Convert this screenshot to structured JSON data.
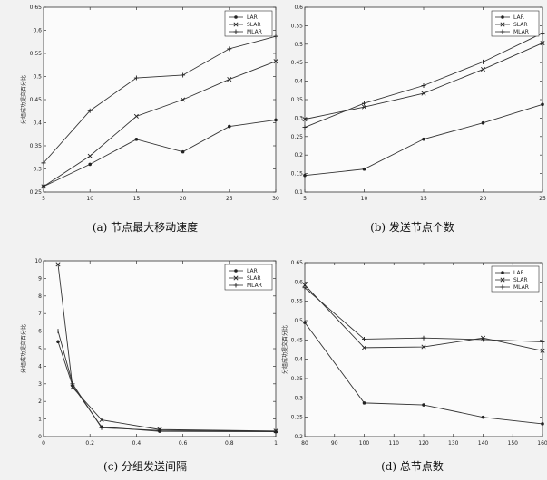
{
  "chart_data": [
    {
      "type": "line",
      "caption": "(a) 节点最大移动速度",
      "ylabel": "分组成功提交百分比",
      "x": [
        5,
        10,
        15,
        20,
        25,
        30
      ],
      "xticks": [
        "5",
        "10",
        "15",
        "20",
        "25",
        "30"
      ],
      "xlim": [
        5,
        30
      ],
      "yticks": [
        "0.25",
        "0.3",
        "0.35",
        "0.4",
        "0.45",
        "0.5",
        "0.55",
        "0.6",
        "0.65"
      ],
      "ylim": [
        0.25,
        0.65
      ],
      "legend": "top-right",
      "series": [
        {
          "name": "LAR",
          "values": [
            0.262,
            0.31,
            0.364,
            0.337,
            0.392,
            0.406
          ]
        },
        {
          "name": "SLAR",
          "values": [
            0.262,
            0.328,
            0.414,
            0.45,
            0.494,
            0.533
          ]
        },
        {
          "name": "MLAR",
          "values": [
            0.313,
            0.426,
            0.497,
            0.503,
            0.56,
            0.587
          ]
        }
      ]
    },
    {
      "type": "line",
      "caption": "(b) 发送节点个数",
      "ylabel": "",
      "x": [
        5,
        10,
        15,
        20,
        25
      ],
      "xticks": [
        "5",
        "10",
        "15",
        "20",
        "25"
      ],
      "xlim": [
        5,
        25
      ],
      "yticks": [
        "0.1",
        "0.15",
        "0.2",
        "0.25",
        "0.3",
        "0.35",
        "0.4",
        "0.45",
        "0.5",
        "0.55",
        "0.6"
      ],
      "ylim": [
        0.1,
        0.6
      ],
      "legend": "top-right",
      "series": [
        {
          "name": "LAR",
          "values": [
            0.145,
            0.162,
            0.243,
            0.287,
            0.337
          ]
        },
        {
          "name": "SLAR",
          "values": [
            0.297,
            0.33,
            0.367,
            0.432,
            0.503
          ]
        },
        {
          "name": "MLAR",
          "values": [
            0.275,
            0.34,
            0.388,
            0.452,
            0.53
          ]
        }
      ]
    },
    {
      "type": "line",
      "caption": "(c) 分组发送间隔",
      "ylabel": "分组成功提交百分比",
      "x": [
        0.0625,
        0.125,
        0.25,
        0.5,
        1
      ],
      "xticks": [
        "0",
        "0.2",
        "0.4",
        "0.6",
        "0.8",
        "1"
      ],
      "xlim": [
        0,
        1
      ],
      "yticks": [
        "0",
        "1",
        "2",
        "3",
        "4",
        "5",
        "6",
        "7",
        "8",
        "9",
        "10"
      ],
      "ylim": [
        0,
        10
      ],
      "legend": "top-right",
      "series": [
        {
          "name": "LAR",
          "values": [
            5.4,
            2.9,
            0.55,
            0.3,
            0.28
          ]
        },
        {
          "name": "SLAR",
          "values": [
            9.8,
            2.8,
            0.95,
            0.4,
            0.32
          ]
        },
        {
          "name": "MLAR",
          "values": [
            6.0,
            3.0,
            0.5,
            0.35,
            0.3
          ]
        }
      ]
    },
    {
      "type": "line",
      "caption": "(d) 总节点数",
      "ylabel": "分组成功提交百分比",
      "x": [
        80,
        100,
        120,
        140,
        160
      ],
      "xticks": [
        "80",
        "90",
        "100",
        "110",
        "120",
        "130",
        "140",
        "150",
        "160"
      ],
      "xlim": [
        80,
        160
      ],
      "yticks": [
        "0.2",
        "0.25",
        "0.3",
        "0.35",
        "0.4",
        "0.45",
        "0.5",
        "0.55",
        "0.6",
        "0.65"
      ],
      "ylim": [
        0.2,
        0.65
      ],
      "legend": "top-right",
      "series": [
        {
          "name": "LAR",
          "values": [
            0.495,
            0.287,
            0.282,
            0.25,
            0.233
          ]
        },
        {
          "name": "SLAR",
          "values": [
            0.592,
            0.43,
            0.432,
            0.455,
            0.422
          ]
        },
        {
          "name": "MLAR",
          "values": [
            0.585,
            0.452,
            0.455,
            0.451,
            0.445
          ]
        }
      ]
    }
  ]
}
